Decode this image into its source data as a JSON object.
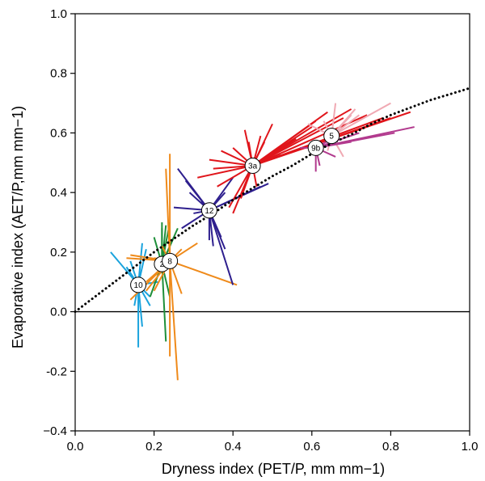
{
  "chart_data": {
    "type": "scatter",
    "title": "",
    "xlabel": "Dryness index (PET/P, mm mm−1)",
    "ylabel": "Evaporative index (AET/P,mm mm−1)",
    "xlim": [
      0.0,
      1.0
    ],
    "ylim": [
      -0.4,
      1.0
    ],
    "x_ticks": [
      0.0,
      0.2,
      0.4,
      0.6,
      0.8,
      1.0
    ],
    "x_tick_labels": [
      "0.0",
      "0.2",
      "0.4",
      "0.6",
      "0.8",
      "1.0"
    ],
    "y_ticks": [
      -0.4,
      -0.2,
      0.0,
      0.2,
      0.4,
      0.6,
      0.8,
      1.0
    ],
    "y_tick_labels": [
      "−0.4",
      "-0.2",
      "0.0",
      "0.2",
      "0.4",
      "0.6",
      "0.8",
      "1.0"
    ],
    "grid": false,
    "legend": "none",
    "zero_line": {
      "y": 0.0,
      "color": "#000000"
    },
    "reference_curve": {
      "style": "dotted",
      "color": "#000000",
      "x": [
        0.0,
        0.05,
        0.1,
        0.15,
        0.2,
        0.25,
        0.3,
        0.35,
        0.4,
        0.45,
        0.5,
        0.55,
        0.6,
        0.65,
        0.7,
        0.75,
        0.8,
        0.85,
        0.9,
        0.95,
        1.0
      ],
      "y": [
        0.0,
        0.05,
        0.1,
        0.15,
        0.2,
        0.245,
        0.29,
        0.33,
        0.375,
        0.415,
        0.455,
        0.49,
        0.53,
        0.565,
        0.595,
        0.63,
        0.66,
        0.685,
        0.71,
        0.73,
        0.75
      ]
    },
    "series": [
      {
        "label": "10",
        "color": "#1aa3dd",
        "center": [
          0.16,
          0.09
        ],
        "endpoints": [
          [
            0.09,
            0.2
          ],
          [
            0.17,
            0.23
          ],
          [
            0.16,
            -0.12
          ],
          [
            0.13,
            0.15
          ],
          [
            0.19,
            0.05
          ],
          [
            0.19,
            0.02
          ],
          [
            0.15,
            0.02
          ],
          [
            0.18,
            0.21
          ],
          [
            0.14,
            0.17
          ],
          [
            0.21,
            0.1
          ],
          [
            0.17,
            -0.05
          ]
        ]
      },
      {
        "label": "2",
        "color": "#1e8f3a",
        "center": [
          0.22,
          0.16
        ],
        "endpoints": [
          [
            0.22,
            0.3
          ],
          [
            0.23,
            0.29
          ],
          [
            0.24,
            0.05
          ],
          [
            0.25,
            0.25
          ],
          [
            0.2,
            0.25
          ],
          [
            0.19,
            0.05
          ],
          [
            0.26,
            0.28
          ],
          [
            0.22,
            0.28
          ],
          [
            0.24,
            0.3
          ],
          [
            0.23,
            -0.1
          ],
          [
            0.21,
            0.13
          ]
        ]
      },
      {
        "label": "8",
        "color": "#ef8a1a",
        "center": [
          0.24,
          0.17
        ],
        "endpoints": [
          [
            0.24,
            0.53
          ],
          [
            0.26,
            -0.23
          ],
          [
            0.23,
            0.48
          ],
          [
            0.24,
            -0.15
          ],
          [
            0.14,
            0.19
          ],
          [
            0.2,
            0.18
          ],
          [
            0.18,
            0.1
          ],
          [
            0.31,
            0.23
          ],
          [
            0.27,
            0.21
          ],
          [
            0.41,
            0.09
          ],
          [
            0.2,
            0.07
          ],
          [
            0.27,
            0.06
          ],
          [
            0.22,
            0.22
          ],
          [
            0.14,
            0.04
          ],
          [
            0.13,
            0.18
          ],
          [
            0.18,
            0.07
          ]
        ]
      },
      {
        "label": "12",
        "color": "#2e1f8e",
        "center": [
          0.34,
          0.34
        ],
        "endpoints": [
          [
            0.26,
            0.48
          ],
          [
            0.4,
            0.09
          ],
          [
            0.28,
            0.44
          ],
          [
            0.34,
            0.24
          ],
          [
            0.37,
            0.25
          ],
          [
            0.27,
            0.28
          ],
          [
            0.38,
            0.21
          ],
          [
            0.35,
            0.22
          ],
          [
            0.32,
            0.37
          ],
          [
            0.29,
            0.4
          ],
          [
            0.25,
            0.35
          ],
          [
            0.47,
            0.42
          ],
          [
            0.49,
            0.43
          ],
          [
            0.3,
            0.33
          ],
          [
            0.38,
            0.4
          ],
          [
            0.4,
            0.45
          ]
        ]
      },
      {
        "label": "3a",
        "color": "#e0151b",
        "center": [
          0.45,
          0.49
        ],
        "endpoints": [
          [
            0.39,
            0.35
          ],
          [
            0.4,
            0.33
          ],
          [
            0.42,
            0.38
          ],
          [
            0.36,
            0.42
          ],
          [
            0.31,
            0.45
          ],
          [
            0.37,
            0.54
          ],
          [
            0.4,
            0.55
          ],
          [
            0.44,
            0.57
          ],
          [
            0.5,
            0.63
          ],
          [
            0.56,
            0.58
          ],
          [
            0.6,
            0.62
          ],
          [
            0.61,
            0.64
          ],
          [
            0.64,
            0.67
          ],
          [
            0.68,
            0.65
          ],
          [
            0.7,
            0.68
          ],
          [
            0.74,
            0.66
          ],
          [
            0.78,
            0.65
          ],
          [
            0.8,
            0.65
          ],
          [
            0.85,
            0.67
          ],
          [
            0.35,
            0.48
          ],
          [
            0.46,
            0.42
          ],
          [
            0.43,
            0.61
          ],
          [
            0.48,
            0.57
          ],
          [
            0.52,
            0.53
          ],
          [
            0.34,
            0.51
          ],
          [
            0.47,
            0.59
          ]
        ]
      },
      {
        "label": "5",
        "color": "#f0a9b3",
        "center": [
          0.65,
          0.59
        ],
        "endpoints": [
          [
            0.71,
            0.68
          ],
          [
            0.64,
            0.54
          ],
          [
            0.8,
            0.7
          ],
          [
            0.7,
            0.66
          ],
          [
            0.72,
            0.66
          ],
          [
            0.66,
            0.7
          ],
          [
            0.68,
            0.52
          ],
          [
            0.59,
            0.63
          ],
          [
            0.63,
            0.64
          ]
        ]
      },
      {
        "label": "9b",
        "color": "#b23a8e",
        "center": [
          0.61,
          0.55
        ],
        "endpoints": [
          [
            0.61,
            0.47
          ],
          [
            0.62,
            0.49
          ],
          [
            0.57,
            0.55
          ],
          [
            0.86,
            0.62
          ],
          [
            0.81,
            0.6
          ],
          [
            0.7,
            0.57
          ],
          [
            0.65,
            0.58
          ],
          [
            0.66,
            0.52
          ],
          [
            0.72,
            0.6
          ]
        ]
      }
    ]
  }
}
